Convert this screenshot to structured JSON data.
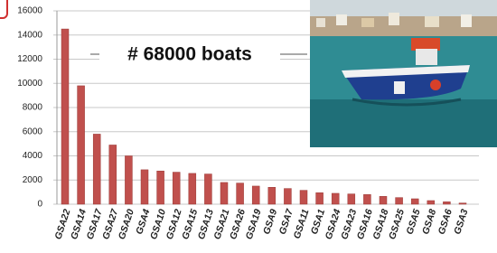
{
  "chart_data": {
    "type": "bar",
    "annotation": "# 68000 boats",
    "categories": [
      "GSA22",
      "GSA14",
      "GSA17",
      "GSA27",
      "GSA20",
      "GSA4",
      "GSA10",
      "GSA12",
      "GSA15",
      "GSA13",
      "GSA21",
      "GSA26",
      "GSA19",
      "GSA9",
      "GSA7",
      "GSA11",
      "GSA1",
      "GSA24",
      "GSA23",
      "GSA16",
      "GSA18",
      "GSA25",
      "GSA5",
      "GSA8",
      "GSA6",
      "GSA3"
    ],
    "values": [
      14500,
      9800,
      5800,
      4900,
      4000,
      2850,
      2750,
      2650,
      2550,
      2500,
      1800,
      1750,
      1500,
      1400,
      1300,
      1150,
      950,
      900,
      850,
      800,
      650,
      550,
      450,
      300,
      200,
      100
    ],
    "color": "#c0504d",
    "ylim": [
      0,
      16000
    ],
    "yticks": [
      0,
      2000,
      4000,
      6000,
      8000,
      10000,
      12000,
      14000,
      16000
    ],
    "grid": true
  }
}
